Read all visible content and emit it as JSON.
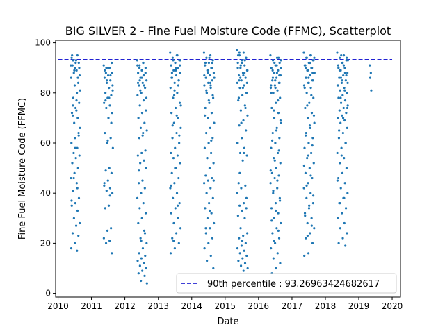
{
  "chart_data": {
    "type": "scatter",
    "title": "BIG SILVER 2 - Fine Fuel Moisture Code (FFMC), Scatterplot",
    "xlabel": "Date",
    "ylabel": "Fine Fuel Moisture Code (FFMC)",
    "x_ticks": [
      "2010",
      "2011",
      "2012",
      "2013",
      "2014",
      "2015",
      "2016",
      "2017",
      "2018",
      "2019",
      "2020"
    ],
    "y_ticks": [
      0,
      20,
      40,
      60,
      80,
      100
    ],
    "xlim": [
      "2009-12-05",
      "2020-04-01"
    ],
    "ylim": [
      -1.5,
      101
    ],
    "grid": false,
    "legend_position": "lower-right",
    "threshold": {
      "label": "90th percentile : 93.26963424682617",
      "value": 93.26963424682617,
      "color": "#0000cc",
      "style": "dashed",
      "x_range": [
        "2010-01-01",
        "2020-01-01"
      ]
    },
    "point_color": "#1f77b4",
    "series": [
      {
        "season": "2010",
        "x_range": [
          "2010-05-20",
          "2010-08-30"
        ],
        "y": [
          91,
          89,
          93,
          92,
          90,
          94,
          95,
          88,
          87,
          93,
          91,
          84,
          83,
          86,
          80,
          78,
          76,
          74,
          72,
          70,
          68,
          66,
          73,
          71,
          64,
          62,
          60,
          58,
          56,
          55,
          54,
          52,
          50,
          48,
          46,
          44,
          41,
          38,
          36,
          35,
          33,
          30,
          28,
          27,
          24,
          23,
          20,
          18,
          17,
          93,
          90,
          92,
          95,
          86,
          89,
          81,
          77,
          75,
          63,
          58,
          37,
          42,
          46
        ]
      },
      {
        "season": "2011",
        "x_range": [
          "2011-05-15",
          "2011-08-25"
        ],
        "y": [
          91,
          90,
          88,
          92,
          87,
          86,
          85,
          84,
          83,
          82,
          80,
          79,
          78,
          76,
          75,
          74,
          72,
          70,
          64,
          62,
          60,
          58,
          50,
          49,
          48,
          45,
          44,
          42,
          41,
          40,
          35,
          34,
          26,
          25,
          22,
          21,
          20,
          16,
          90,
          89,
          87,
          85,
          81,
          78,
          77,
          68,
          61,
          43,
          39,
          90,
          88
        ]
      },
      {
        "season": "2012",
        "x_range": [
          "2012-05-15",
          "2012-08-30"
        ],
        "y": [
          93,
          92,
          91,
          90,
          89,
          88,
          87,
          86,
          85,
          84,
          83,
          82,
          80,
          79,
          77,
          75,
          73,
          72,
          70,
          68,
          66,
          65,
          64,
          62,
          57,
          56,
          55,
          53,
          52,
          50,
          45,
          44,
          42,
          40,
          38,
          36,
          34,
          32,
          30,
          28,
          25,
          22,
          20,
          18,
          16,
          15,
          14,
          13,
          12,
          11,
          10,
          9,
          8,
          7,
          5,
          4,
          92,
          90,
          88,
          86,
          84,
          83,
          81,
          78,
          63,
          49,
          24,
          21,
          91,
          87,
          85
        ]
      },
      {
        "season": "2013",
        "x_range": [
          "2013-05-10",
          "2013-09-05"
        ],
        "y": [
          96,
          95,
          94,
          93,
          92,
          91,
          90,
          89,
          88,
          87,
          86,
          85,
          84,
          82,
          80,
          78,
          76,
          74,
          72,
          70,
          68,
          66,
          64,
          62,
          60,
          58,
          56,
          55,
          54,
          52,
          50,
          48,
          46,
          44,
          42,
          40,
          38,
          36,
          34,
          32,
          30,
          28,
          26,
          24,
          22,
          20,
          18,
          16,
          95,
          93,
          91,
          89,
          86,
          83,
          79,
          75,
          71,
          67,
          63,
          50,
          43,
          35,
          21,
          93,
          90,
          88,
          85,
          81
        ]
      },
      {
        "season": "2014",
        "x_range": [
          "2014-05-15",
          "2014-09-05"
        ],
        "y": [
          96,
          95,
          94,
          93,
          92,
          91,
          90,
          89,
          88,
          87,
          86,
          85,
          84,
          83,
          82,
          80,
          78,
          76,
          74,
          72,
          70,
          68,
          66,
          64,
          62,
          60,
          58,
          56,
          54,
          52,
          50,
          47,
          46,
          45,
          44,
          42,
          40,
          38,
          36,
          34,
          32,
          30,
          28,
          26,
          24,
          22,
          20,
          18,
          15,
          13,
          10,
          94,
          92,
          90,
          88,
          86,
          84,
          81,
          79,
          77,
          71,
          61,
          54,
          45,
          33,
          26,
          92,
          89,
          87,
          83,
          80
        ]
      },
      {
        "season": "2015",
        "x_range": [
          "2015-05-10",
          "2015-09-05"
        ],
        "y": [
          97,
          96,
          95,
          94,
          93,
          92,
          91,
          90,
          89,
          88,
          87,
          86,
          85,
          84,
          83,
          82,
          80,
          79,
          77,
          75,
          73,
          71,
          69,
          67,
          65,
          62,
          60,
          58,
          56,
          55,
          53,
          44,
          43,
          42,
          40,
          36,
          35,
          34,
          33,
          31,
          30,
          26,
          24,
          23,
          22,
          20,
          19,
          18,
          17,
          16,
          15,
          14,
          13,
          12,
          11,
          10,
          9,
          96,
          94,
          92,
          90,
          88,
          86,
          84,
          82,
          78,
          74,
          68,
          60,
          56,
          48,
          38,
          21,
          95,
          93,
          91,
          89,
          87,
          85
        ]
      },
      {
        "season": "2016",
        "x_range": [
          "2016-05-10",
          "2016-09-05"
        ],
        "y": [
          95,
          94,
          93,
          92,
          91,
          90,
          89,
          88,
          87,
          86,
          85,
          84,
          83,
          82,
          81,
          80,
          78,
          76,
          74,
          72,
          70,
          68,
          66,
          64,
          62,
          60,
          58,
          56,
          54,
          52,
          50,
          48,
          47,
          46,
          44,
          42,
          40,
          38,
          36,
          34,
          32,
          30,
          28,
          26,
          24,
          22,
          20,
          18,
          16,
          14,
          12,
          10,
          8,
          94,
          92,
          90,
          88,
          86,
          84,
          82,
          80,
          77,
          73,
          69,
          65,
          61,
          57,
          53,
          49,
          45,
          41,
          37,
          33,
          29,
          25,
          21,
          93,
          91,
          89,
          87,
          85,
          83
        ]
      },
      {
        "season": "2017",
        "x_range": [
          "2017-05-10",
          "2017-09-05"
        ],
        "y": [
          96,
          95,
          94,
          93,
          92,
          91,
          90,
          89,
          88,
          87,
          86,
          85,
          84,
          83,
          82,
          80,
          78,
          76,
          74,
          72,
          70,
          68,
          66,
          64,
          62,
          60,
          58,
          56,
          54,
          52,
          50,
          48,
          46,
          44,
          42,
          40,
          38,
          36,
          34,
          32,
          30,
          28,
          26,
          24,
          22,
          20,
          16,
          15,
          95,
          94,
          93,
          92,
          91,
          90,
          89,
          88,
          87,
          86,
          85,
          84,
          82,
          79,
          75,
          71,
          67,
          63,
          59,
          55,
          51,
          47,
          43,
          39,
          35,
          31,
          27,
          23,
          94,
          92,
          90,
          88,
          86
        ]
      },
      {
        "season": "2018",
        "x_range": [
          "2018-05-10",
          "2018-09-05"
        ],
        "y": [
          96,
          95,
          94,
          93,
          92,
          91,
          90,
          89,
          88,
          87,
          86,
          85,
          84,
          83,
          82,
          81,
          80,
          79,
          78,
          77,
          76,
          75,
          74,
          73,
          72,
          71,
          70,
          69,
          68,
          66,
          64,
          62,
          60,
          58,
          56,
          54,
          52,
          50,
          48,
          46,
          44,
          42,
          40,
          38,
          36,
          34,
          32,
          30,
          28,
          26,
          24,
          22,
          20,
          19,
          95,
          93,
          91,
          89,
          87,
          85,
          83,
          81,
          78,
          74,
          70,
          65,
          60,
          55,
          45,
          38,
          36,
          94,
          92,
          90,
          88,
          86,
          84
        ]
      },
      {
        "season": "2019",
        "x_range": [
          "2019-05-01",
          "2019-05-20"
        ],
        "y": [
          91,
          88,
          86,
          81
        ]
      }
    ]
  }
}
